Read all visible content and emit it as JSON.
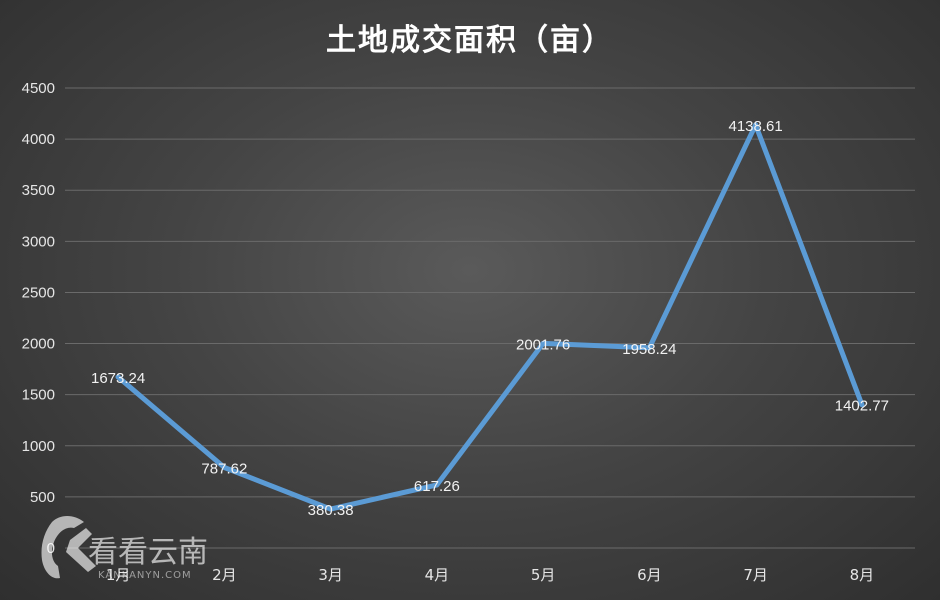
{
  "chart_data": {
    "type": "line",
    "title": "土地成交面积（亩）",
    "categories": [
      "1月",
      "2月",
      "3月",
      "4月",
      "5月",
      "6月",
      "7月",
      "8月"
    ],
    "series": [
      {
        "values": [
          1673.24,
          787.62,
          380.38,
          617.26,
          2001.76,
          1958.24,
          4138.61,
          1402.77
        ],
        "labels": [
          "1673.24",
          "787.62",
          "380.38",
          "617.26",
          "2001.76",
          "1958.24",
          "4138.61",
          "1402.77"
        ],
        "color": "#5b9bd5"
      }
    ],
    "yticks": [
      "0",
      "500",
      "1000",
      "1500",
      "2000",
      "2500",
      "3000",
      "3500",
      "4000",
      "4500"
    ],
    "ylim": [
      0,
      4500
    ],
    "grid": true,
    "legend": "none"
  },
  "watermark": {
    "name": "看看云南",
    "url": "KANKANYN.COM"
  }
}
